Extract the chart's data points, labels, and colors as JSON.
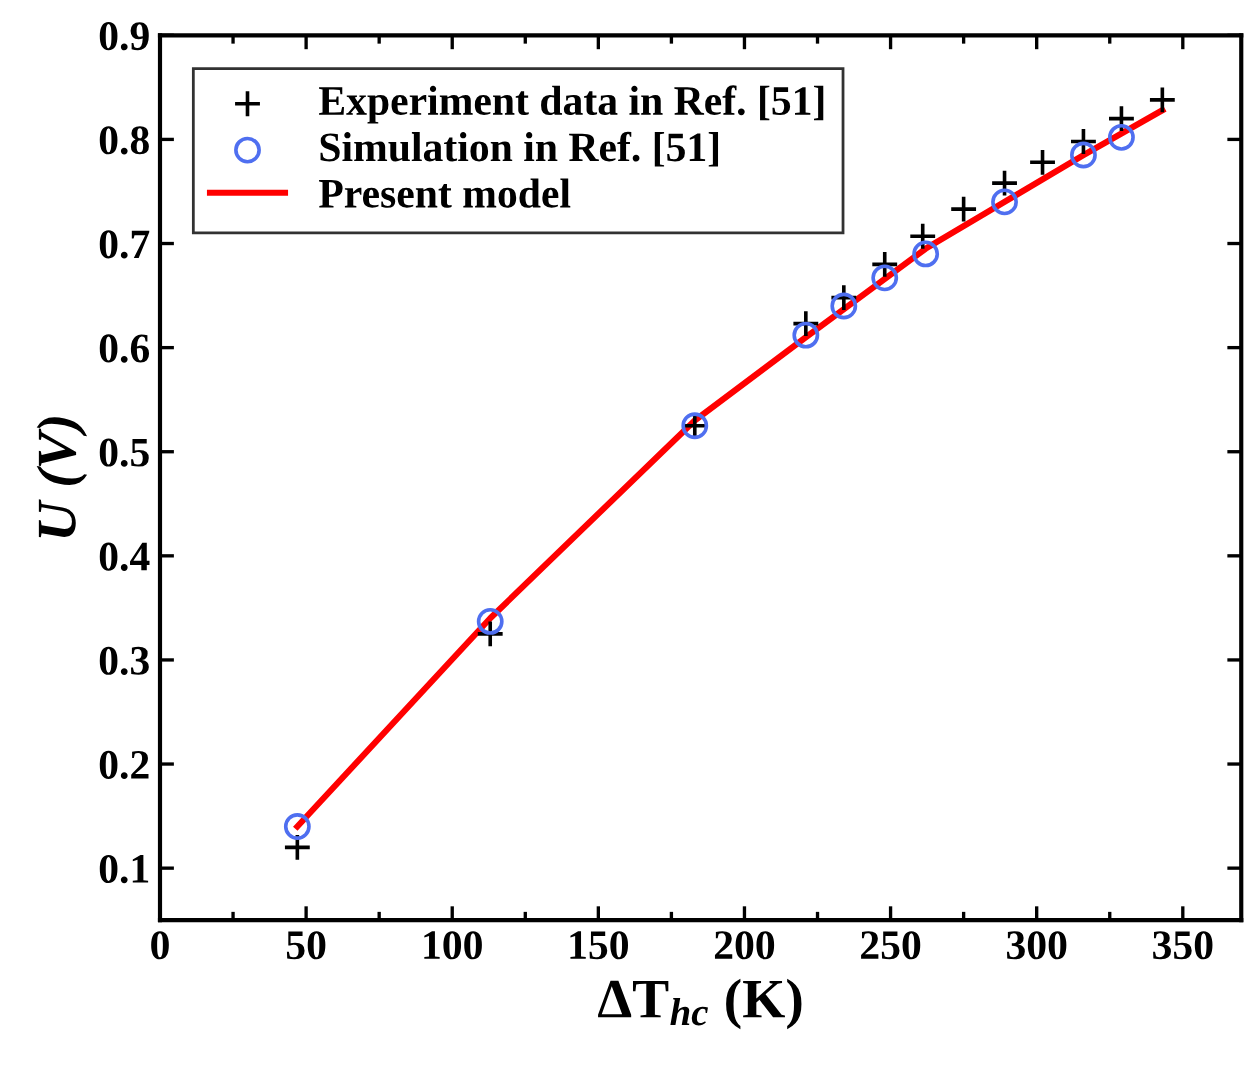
{
  "chart_data": {
    "type": "scatter",
    "xlabel": "ΔT$_{hc}$ (K)",
    "ylabel": "U (V)",
    "xlim": [
      0,
      370
    ],
    "ylim": [
      0.05,
      0.9
    ],
    "xticks": [
      0,
      50,
      100,
      150,
      200,
      250,
      300,
      350
    ],
    "yticks": [
      0.1,
      0.2,
      0.3,
      0.4,
      0.5,
      0.6,
      0.7,
      0.8,
      0.9
    ],
    "legend": "top left",
    "grid": false,
    "series": [
      {
        "name": "Experiment data in Ref. [51]",
        "marker": "cross",
        "color": "#000000",
        "x": [
          47,
          113,
          183,
          221,
          234,
          248,
          261,
          275,
          289,
          302,
          316,
          329,
          343
        ],
        "values": [
          0.12,
          0.325,
          0.525,
          0.623,
          0.648,
          0.68,
          0.707,
          0.733,
          0.758,
          0.778,
          0.798,
          0.82,
          0.838
        ]
      },
      {
        "name": "Simulation in Ref. [51]",
        "marker": "circle",
        "color": "#4f6ff0",
        "x": [
          47,
          113,
          183,
          221,
          234,
          248,
          262,
          289,
          316,
          329
        ],
        "values": [
          0.14,
          0.337,
          0.525,
          0.612,
          0.64,
          0.667,
          0.69,
          0.74,
          0.785,
          0.802
        ]
      },
      {
        "name": "Present model",
        "type": "line",
        "marker": "none",
        "line_style": "solid",
        "color": "#ff0000",
        "x": [
          47,
          113,
          183,
          221,
          262,
          289,
          316,
          343
        ],
        "values": [
          0.14,
          0.34,
          0.53,
          0.61,
          0.695,
          0.74,
          0.785,
          0.828
        ]
      }
    ]
  }
}
